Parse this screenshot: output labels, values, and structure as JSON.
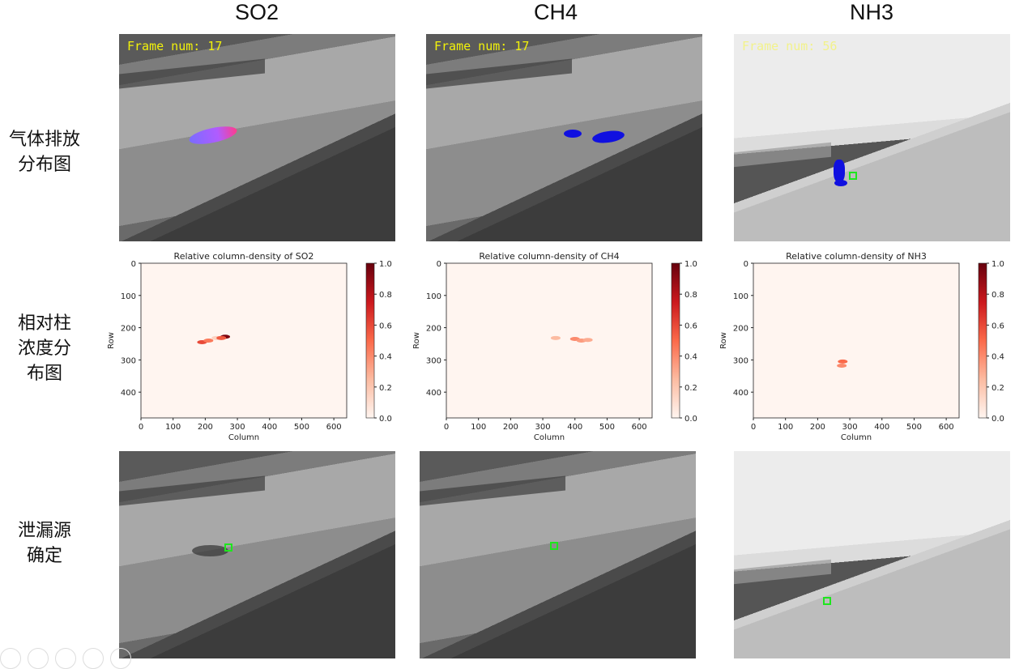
{
  "columns": [
    {
      "title": "SO2"
    },
    {
      "title": "CH4"
    },
    {
      "title": "NH3"
    }
  ],
  "rows": {
    "row1_lines": [
      "气体排放",
      "分布图"
    ],
    "row2_lines": [
      "相对柱",
      "浓度分",
      "布图"
    ],
    "row3_lines": [
      "泄漏源",
      "确定"
    ]
  },
  "frames": {
    "so2": "Frame num: 17",
    "ch4": "Frame num: 17",
    "nh3": "Frame num: 56"
  },
  "colors": {
    "marker": "#1ee61e",
    "plume_blue": "#1010e0",
    "plume_pink": "#ff3c8c",
    "frame_text": "#f2f20a"
  },
  "chart_data": [
    {
      "type": "heatmap",
      "title": "Relative column-density of SO2",
      "xlabel": "Column",
      "ylabel": "Row",
      "xlim": [
        0,
        640
      ],
      "ylim": [
        480,
        0
      ],
      "xticks": [
        0,
        100,
        200,
        300,
        400,
        500,
        600
      ],
      "yticks": [
        0,
        100,
        200,
        300,
        400
      ],
      "colorbar": {
        "range": [
          0,
          1
        ],
        "ticks": [
          "0.0",
          "0.2",
          "0.4",
          "0.6",
          "0.8",
          "1.0"
        ],
        "cmap": "Reds"
      },
      "hotspots": [
        {
          "col": 190,
          "row": 245,
          "value": 0.6
        },
        {
          "col": 210,
          "row": 240,
          "value": 0.45
        },
        {
          "col": 235,
          "row": 232,
          "value": 0.15
        },
        {
          "col": 262,
          "row": 228,
          "value": 0.95
        },
        {
          "col": 250,
          "row": 232,
          "value": 0.55
        }
      ]
    },
    {
      "type": "heatmap",
      "title": "Relative column-density of CH4",
      "xlabel": "Column",
      "ylabel": "Row",
      "xlim": [
        0,
        640
      ],
      "ylim": [
        480,
        0
      ],
      "xticks": [
        0,
        100,
        200,
        300,
        400,
        500,
        600
      ],
      "yticks": [
        0,
        100,
        200,
        300,
        400
      ],
      "colorbar": {
        "range": [
          0,
          1
        ],
        "ticks": [
          "0.0",
          "0.2",
          "0.4",
          "0.6",
          "0.8",
          "1.0"
        ],
        "cmap": "Reds"
      },
      "hotspots": [
        {
          "col": 340,
          "row": 232,
          "value": 0.25
        },
        {
          "col": 400,
          "row": 235,
          "value": 0.4
        },
        {
          "col": 420,
          "row": 240,
          "value": 0.35
        },
        {
          "col": 440,
          "row": 238,
          "value": 0.3
        }
      ]
    },
    {
      "type": "heatmap",
      "title": "Relative column-density of NH3",
      "xlabel": "Column",
      "ylabel": "Row",
      "xlim": [
        0,
        640
      ],
      "ylim": [
        480,
        0
      ],
      "xticks": [
        0,
        100,
        200,
        300,
        400,
        500,
        600
      ],
      "yticks": [
        0,
        100,
        200,
        300,
        400
      ],
      "colorbar": {
        "range": [
          0,
          1
        ],
        "ticks": [
          "0.0",
          "0.2",
          "0.4",
          "0.6",
          "0.8",
          "1.0"
        ],
        "cmap": "Reds"
      },
      "hotspots": [
        {
          "col": 278,
          "row": 305,
          "value": 0.5
        },
        {
          "col": 275,
          "row": 318,
          "value": 0.4
        }
      ]
    }
  ]
}
